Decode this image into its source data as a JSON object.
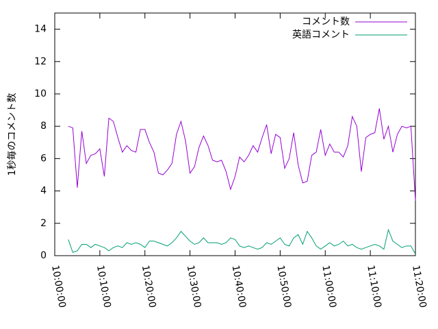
{
  "chart_data": {
    "type": "line",
    "y_label": "1秒毎のコメント数",
    "x": [
      "10:03:00",
      "10:04:00",
      "10:05:00",
      "10:06:00",
      "10:07:00",
      "10:08:00",
      "10:09:00",
      "10:10:00",
      "10:11:00",
      "10:12:00",
      "10:13:00",
      "10:14:00",
      "10:15:00",
      "10:16:00",
      "10:17:00",
      "10:18:00",
      "10:19:00",
      "10:20:00",
      "10:21:00",
      "10:22:00",
      "10:23:00",
      "10:24:00",
      "10:25:00",
      "10:26:00",
      "10:27:00",
      "10:28:00",
      "10:29:00",
      "10:30:00",
      "10:31:00",
      "10:32:00",
      "10:33:00",
      "10:34:00",
      "10:35:00",
      "10:36:00",
      "10:37:00",
      "10:38:00",
      "10:39:00",
      "10:40:00",
      "10:41:00",
      "10:42:00",
      "10:43:00",
      "10:44:00",
      "10:45:00",
      "10:46:00",
      "10:47:00",
      "10:48:00",
      "10:49:00",
      "10:50:00",
      "10:51:00",
      "10:52:00",
      "10:53:00",
      "10:54:00",
      "10:55:00",
      "10:56:00",
      "10:57:00",
      "10:58:00",
      "10:59:00",
      "11:00:00",
      "11:01:00",
      "11:02:00",
      "11:03:00",
      "11:04:00",
      "11:05:00",
      "11:06:00",
      "11:07:00",
      "11:08:00",
      "11:09:00",
      "11:10:00",
      "11:11:00",
      "11:12:00",
      "11:13:00",
      "11:14:00",
      "11:15:00",
      "11:16:00",
      "11:17:00",
      "11:18:00",
      "11:19:00",
      "11:20:00"
    ],
    "series": [
      {
        "name": "コメント数",
        "color": "#9400d3",
        "values": [
          8.0,
          7.9,
          4.2,
          7.7,
          5.7,
          6.2,
          6.3,
          6.6,
          4.9,
          8.5,
          8.3,
          7.3,
          6.4,
          6.8,
          6.5,
          6.4,
          7.8,
          7.8,
          7.0,
          6.4,
          5.1,
          5.0,
          5.3,
          5.7,
          7.5,
          8.3,
          7.1,
          5.1,
          5.5,
          6.7,
          7.4,
          6.8,
          5.9,
          5.8,
          5.9,
          5.2,
          4.1,
          4.9,
          6.1,
          5.8,
          6.2,
          6.8,
          6.4,
          7.3,
          8.1,
          6.3,
          7.5,
          7.3,
          5.4,
          6.0,
          7.6,
          5.6,
          4.5,
          4.6,
          6.2,
          6.4,
          7.8,
          6.2,
          6.9,
          6.4,
          6.4,
          6.1,
          6.8,
          8.6,
          8.0,
          5.2,
          7.3,
          7.5,
          7.6,
          9.1,
          7.2,
          8.0,
          6.4,
          7.5,
          8.0,
          7.9,
          8.0,
          3.4
        ]
      },
      {
        "name": "英語コメント",
        "color": "#009e73",
        "values": [
          1.0,
          0.2,
          0.3,
          0.7,
          0.7,
          0.5,
          0.7,
          0.6,
          0.5,
          0.3,
          0.5,
          0.6,
          0.5,
          0.8,
          0.7,
          0.8,
          0.7,
          0.5,
          0.9,
          0.9,
          0.8,
          0.7,
          0.6,
          0.8,
          1.1,
          1.5,
          1.2,
          0.9,
          0.7,
          0.8,
          1.1,
          0.8,
          0.8,
          0.8,
          0.7,
          0.8,
          1.1,
          1.0,
          0.6,
          0.5,
          0.6,
          0.5,
          0.4,
          0.5,
          0.8,
          0.7,
          0.9,
          1.1,
          0.7,
          0.6,
          1.1,
          1.3,
          0.7,
          1.5,
          1.1,
          0.6,
          0.4,
          0.6,
          0.8,
          0.6,
          0.7,
          0.9,
          0.6,
          0.7,
          0.5,
          0.4,
          0.5,
          0.6,
          0.7,
          0.6,
          0.4,
          1.6,
          0.9,
          0.7,
          0.5,
          0.6,
          0.6,
          0.1
        ]
      }
    ],
    "xlim": [
      "10:00:00",
      "11:20:00"
    ],
    "xticks": [
      "10:00:00",
      "10:10:00",
      "10:20:00",
      "10:30:00",
      "10:40:00",
      "10:50:00",
      "11:00:00",
      "11:10:00",
      "11:20:00"
    ],
    "ylim": [
      0,
      15
    ],
    "yticks": [
      0,
      2,
      4,
      6,
      8,
      10,
      12,
      14
    ],
    "legend": "top-right"
  }
}
